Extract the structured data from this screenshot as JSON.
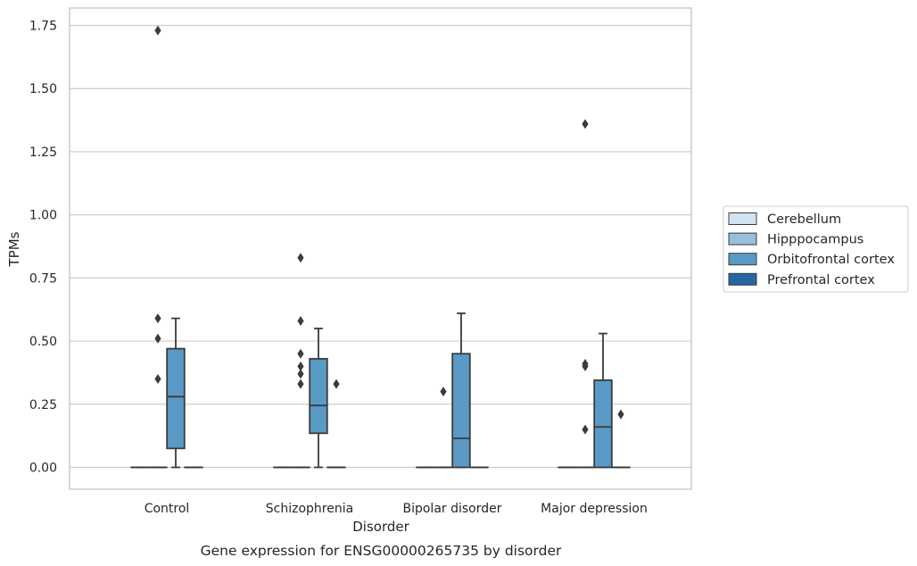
{
  "chart_data": {
    "type": "box",
    "title": "",
    "caption": "Gene expression for ENSG00000265735 by disorder",
    "xlabel": "Disorder",
    "ylabel": "TPMs",
    "ylim": [
      -0.085,
      1.82
    ],
    "yticks": [
      0.0,
      0.25,
      0.5,
      0.75,
      1.0,
      1.25,
      1.5,
      1.75
    ],
    "ytick_labels": [
      "0.00",
      "0.25",
      "0.50",
      "0.75",
      "1.00",
      "1.25",
      "1.50",
      "1.75"
    ],
    "grid": true,
    "legend": "right",
    "categories": [
      "Control",
      "Schizophrenia",
      "Bipolar disorder",
      "Major depression"
    ],
    "series": [
      {
        "name": "Cerebellum",
        "color": "#d4e3f0",
        "boxes": [
          {
            "q1": 0,
            "median": 0,
            "q3": 0,
            "whislo": 0,
            "whishi": 0,
            "fliers": []
          },
          {
            "q1": 0,
            "median": 0,
            "q3": 0,
            "whislo": 0,
            "whishi": 0,
            "fliers": []
          },
          {
            "q1": 0,
            "median": 0,
            "q3": 0,
            "whislo": 0,
            "whishi": 0,
            "fliers": []
          },
          {
            "q1": 0,
            "median": 0,
            "q3": 0,
            "whislo": 0,
            "whishi": 0,
            "fliers": []
          }
        ]
      },
      {
        "name": "Hipppocampus",
        "color": "#95bfdb",
        "boxes": [
          {
            "q1": 0,
            "median": 0,
            "q3": 0,
            "whislo": 0,
            "whishi": 0,
            "fliers": [
              0.35,
              0.51,
              0.59,
              1.73
            ]
          },
          {
            "q1": 0,
            "median": 0,
            "q3": 0,
            "whislo": 0,
            "whishi": 0,
            "fliers": [
              0.33,
              0.37,
              0.4,
              0.45,
              0.58,
              0.83
            ]
          },
          {
            "q1": 0,
            "median": 0,
            "q3": 0,
            "whislo": 0,
            "whishi": 0,
            "fliers": [
              0.3
            ]
          },
          {
            "q1": 0,
            "median": 0,
            "q3": 0,
            "whislo": 0,
            "whishi": 0,
            "fliers": [
              0.15,
              0.4,
              0.41,
              1.36
            ]
          }
        ]
      },
      {
        "name": "Orbitofrontal cortex",
        "color": "#5a9ac6",
        "boxes": [
          {
            "q1": 0.075,
            "median": 0.28,
            "q3": 0.47,
            "whislo": 0,
            "whishi": 0.59,
            "fliers": []
          },
          {
            "q1": 0.135,
            "median": 0.245,
            "q3": 0.43,
            "whislo": 0,
            "whishi": 0.55,
            "fliers": []
          },
          {
            "q1": 0,
            "median": 0.115,
            "q3": 0.45,
            "whislo": 0,
            "whishi": 0.61,
            "fliers": []
          },
          {
            "q1": 0,
            "median": 0.16,
            "q3": 0.345,
            "whislo": 0,
            "whishi": 0.53,
            "fliers": []
          }
        ]
      },
      {
        "name": "Prefrontal cortex",
        "color": "#2666a4",
        "boxes": [
          {
            "q1": 0,
            "median": 0,
            "q3": 0,
            "whislo": 0,
            "whishi": 0,
            "fliers": []
          },
          {
            "q1": 0,
            "median": 0,
            "q3": 0,
            "whislo": 0,
            "whishi": 0,
            "fliers": [
              0.33
            ]
          },
          {
            "q1": 0,
            "median": 0,
            "q3": 0,
            "whislo": 0,
            "whishi": 0,
            "fliers": []
          },
          {
            "q1": 0,
            "median": 0,
            "q3": 0,
            "whislo": 0,
            "whishi": 0,
            "fliers": [
              0.21
            ]
          }
        ]
      }
    ]
  }
}
